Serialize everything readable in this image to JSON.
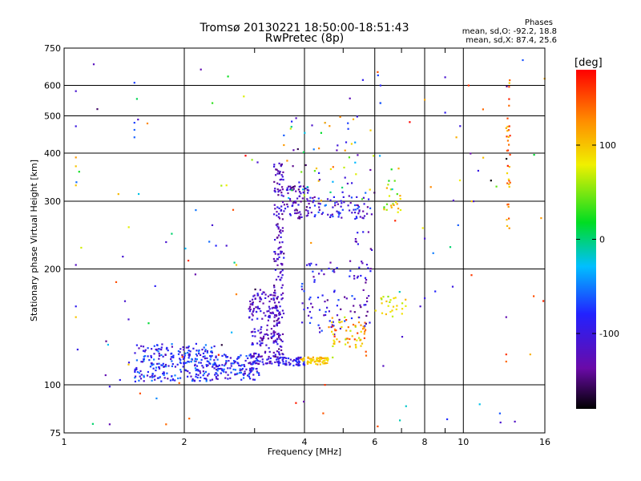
{
  "chart_data": {
    "type": "scatter",
    "title": "Tromsø 20130221 18:50:00-18:51:43",
    "subtitle": "RwPretec (8p)",
    "xlabel": "Frequency [MHz]",
    "ylabel": "Stationary phase Virtual Height [km]",
    "x_scale": "log",
    "y_scale": "log",
    "xlim": [
      1,
      16
    ],
    "ylim": [
      75,
      750
    ],
    "x_ticks": [
      1,
      2,
      4,
      6,
      8,
      10,
      16
    ],
    "x_minor_ticks": [
      3,
      5,
      7,
      9
    ],
    "y_ticks": [
      75,
      100,
      200,
      300,
      400,
      500,
      600,
      750
    ],
    "grid": true,
    "phases_box": {
      "title": "Phases",
      "line_o": "mean, sd,O: -92.2, 18.8",
      "line_x": "mean, sd,X:  87.4, 25.6"
    },
    "colorbar": {
      "label": "[deg]",
      "range": [
        -180,
        180
      ],
      "ticks": [
        100,
        0,
        -100
      ],
      "colormap": "rainbow (black→purple→blue→cyan→green→yellow→orange→red)"
    },
    "clusters": [
      {
        "f": [
          1.5,
          2.35
        ],
        "h": [
          102,
          128
        ],
        "phase": [
          -125,
          -45
        ],
        "n": 260
      },
      {
        "f": [
          2.35,
          3.1
        ],
        "h": [
          103,
          120
        ],
        "phase": [
          -125,
          -50
        ],
        "n": 140
      },
      {
        "f": [
          2.9,
          3.45
        ],
        "h": [
          113,
          175
        ],
        "phase": [
          -145,
          -80
        ],
        "n": 180
      },
      {
        "f": [
          3.35,
          3.55
        ],
        "h": [
          118,
          380
        ],
        "phase": [
          -150,
          -90
        ],
        "n": 170
      },
      {
        "f": [
          3.4,
          4.0
        ],
        "h": [
          112,
          118
        ],
        "phase": [
          -120,
          -70
        ],
        "n": 60
      },
      {
        "f": [
          3.9,
          4.6
        ],
        "h": [
          113,
          118
        ],
        "phase": [
          80,
          120
        ],
        "n": 70
      },
      {
        "f": [
          3.55,
          4.1
        ],
        "h": [
          270,
          330
        ],
        "phase": [
          -150,
          -85
        ],
        "n": 70
      },
      {
        "f": [
          4.1,
          5.9
        ],
        "h": [
          270,
          310
        ],
        "phase": [
          -140,
          -60
        ],
        "n": 80
      },
      {
        "f": [
          3.9,
          5.4
        ],
        "h": [
          135,
          210
        ],
        "phase": [
          -150,
          -60
        ],
        "n": 70
      },
      {
        "f": [
          4.6,
          5.7
        ],
        "h": [
          125,
          150
        ],
        "phase": [
          60,
          160
        ],
        "n": 60
      },
      {
        "f": [
          5.3,
          5.9
        ],
        "h": [
          140,
          250
        ],
        "phase": [
          -150,
          -80
        ],
        "n": 40
      },
      {
        "f": [
          6.0,
          7.2
        ],
        "h": [
          150,
          170
        ],
        "phase": [
          50,
          110
        ],
        "n": 25
      },
      {
        "f": [
          6.3,
          7.0
        ],
        "h": [
          280,
          370
        ],
        "phase": [
          20,
          120
        ],
        "n": 25
      },
      {
        "f": [
          3.6,
          6.0
        ],
        "h": [
          300,
          500
        ],
        "phase": [
          -160,
          150
        ],
        "n": 60
      },
      {
        "f": [
          12.8,
          13.1
        ],
        "h": [
          250,
          650
        ],
        "phase": [
          90,
          170
        ],
        "n": 35
      },
      {
        "f": [
          1.05,
          16
        ],
        "h": [
          76,
          720
        ],
        "phase": [
          -180,
          180
        ],
        "n": 90
      }
    ],
    "points": [
      [
        1.07,
        580,
        -110
      ],
      [
        1.07,
        470,
        -100
      ],
      [
        1.07,
        390,
        120
      ],
      [
        1.07,
        370,
        100
      ],
      [
        1.07,
        330,
        100
      ],
      [
        1.07,
        205,
        -120
      ],
      [
        1.07,
        160,
        -90
      ],
      [
        1.07,
        150,
        100
      ],
      [
        1.5,
        610,
        -70
      ],
      [
        1.5,
        480,
        -70
      ],
      [
        1.5,
        460,
        -60
      ],
      [
        1.5,
        440,
        -60
      ],
      [
        1.42,
        165,
        -110
      ],
      [
        1.45,
        148,
        -110
      ],
      [
        1.35,
        185,
        150
      ],
      [
        1.45,
        113,
        100
      ],
      [
        1.27,
        106,
        -130
      ],
      [
        1.3,
        99,
        -100
      ],
      [
        1.3,
        79,
        -130
      ],
      [
        1.38,
        103,
        -90
      ],
      [
        1.55,
        95,
        150
      ],
      [
        1.8,
        235,
        -110
      ],
      [
        2.2,
        660,
        -130
      ],
      [
        2.35,
        260,
        -110
      ],
      [
        2.4,
        230,
        -80
      ],
      [
        2.55,
        230,
        -110
      ],
      [
        2.65,
        285,
        150
      ],
      [
        2.7,
        205,
        100
      ],
      [
        2.55,
        330,
        80
      ],
      [
        3.55,
        445,
        -60
      ],
      [
        3.55,
        420,
        120
      ],
      [
        4.5,
        480,
        -70
      ],
      [
        4.5,
        480,
        110
      ],
      [
        5.3,
        490,
        110
      ],
      [
        5.6,
        620,
        -90
      ],
      [
        6.1,
        650,
        150
      ],
      [
        6.2,
        600,
        -80
      ],
      [
        6.2,
        540,
        -60
      ],
      [
        9.0,
        630,
        -110
      ],
      [
        9.0,
        510,
        -90
      ],
      [
        9.6,
        440,
        110
      ],
      [
        10.3,
        600,
        160
      ],
      [
        11.2,
        520,
        140
      ],
      [
        9.8,
        340,
        80
      ],
      [
        10.5,
        300,
        100
      ],
      [
        10.6,
        300,
        -110
      ],
      [
        9.7,
        260,
        -60
      ],
      [
        8.0,
        240,
        -110
      ],
      [
        8.4,
        220,
        -50
      ],
      [
        8.5,
        175,
        -80
      ],
      [
        9.4,
        180,
        -100
      ],
      [
        8.0,
        168,
        -100
      ],
      [
        7.8,
        160,
        -110
      ],
      [
        6.3,
        112,
        -120
      ],
      [
        6.1,
        78,
        150
      ],
      [
        15.0,
        170,
        150
      ],
      [
        14.7,
        120,
        110
      ],
      [
        12.8,
        120,
        160
      ],
      [
        12.8,
        115,
        140
      ],
      [
        12.8,
        150,
        -130
      ],
      [
        5.7,
        122,
        150
      ],
      [
        4.5,
        100,
        160
      ],
      [
        1.8,
        79,
        140
      ],
      [
        2.7,
        172,
        130
      ]
    ]
  }
}
